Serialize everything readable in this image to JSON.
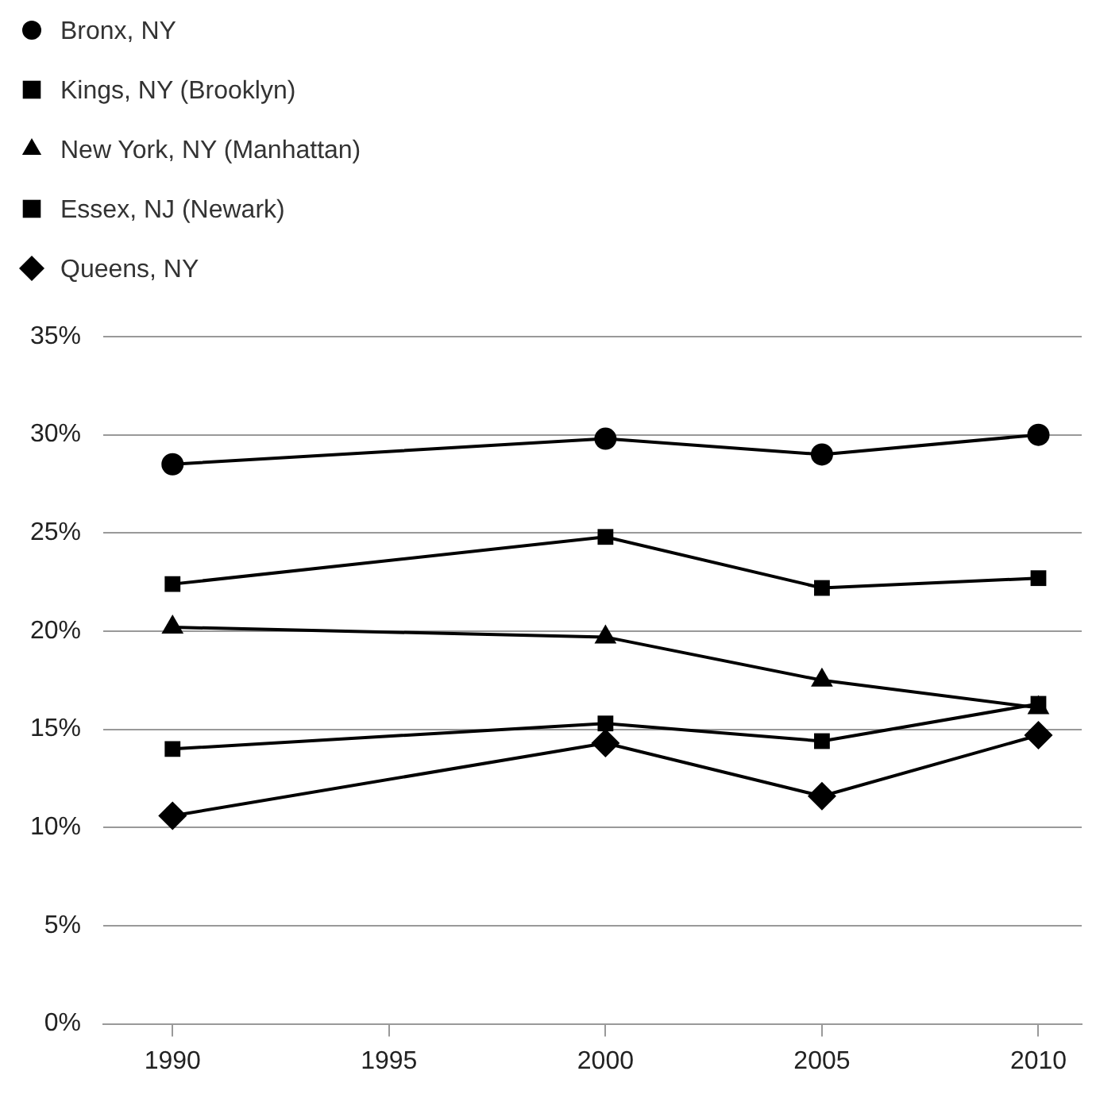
{
  "chart_data": {
    "type": "line",
    "x": [
      1990,
      2000,
      2005,
      2010
    ],
    "series": [
      {
        "name": "Bronx, NY",
        "color": "#000000",
        "marker": "circle",
        "values": [
          28.5,
          29.8,
          29.0,
          30.0
        ]
      },
      {
        "name": "Kings, NY (Brooklyn)",
        "color": "#000000",
        "marker": "square",
        "values": [
          22.4,
          24.8,
          22.2,
          22.7
        ]
      },
      {
        "name": "New York, NY (Manhattan)",
        "color": "#000000",
        "marker": "triangle",
        "values": [
          20.2,
          19.7,
          17.5,
          16.1
        ]
      },
      {
        "name": "Essex, NJ (Newark)",
        "color": "#000000",
        "marker": "square",
        "values": [
          14.0,
          15.3,
          14.4,
          16.3
        ]
      },
      {
        "name": "Queens, NY",
        "color": "#000000",
        "marker": "diamond",
        "values": [
          10.6,
          14.3,
          11.6,
          14.7
        ]
      }
    ],
    "xlim": [
      1988.4,
      2011
    ],
    "xticks": [
      1990,
      1995,
      2000,
      2005,
      2010
    ],
    "ylim": [
      0,
      35
    ],
    "yticks": [
      {
        "value": 0,
        "label": "0%"
      },
      {
        "value": 5,
        "label": "5%"
      },
      {
        "value": 10,
        "label": "10%"
      },
      {
        "value": 15,
        "label": "15%"
      },
      {
        "value": 20,
        "label": "20%"
      },
      {
        "value": 25,
        "label": "25%"
      },
      {
        "value": 30,
        "label": "30%"
      },
      {
        "value": 35,
        "label": "35%"
      }
    ],
    "grid": "y",
    "legend": "top left",
    "line_style": "solid"
  }
}
